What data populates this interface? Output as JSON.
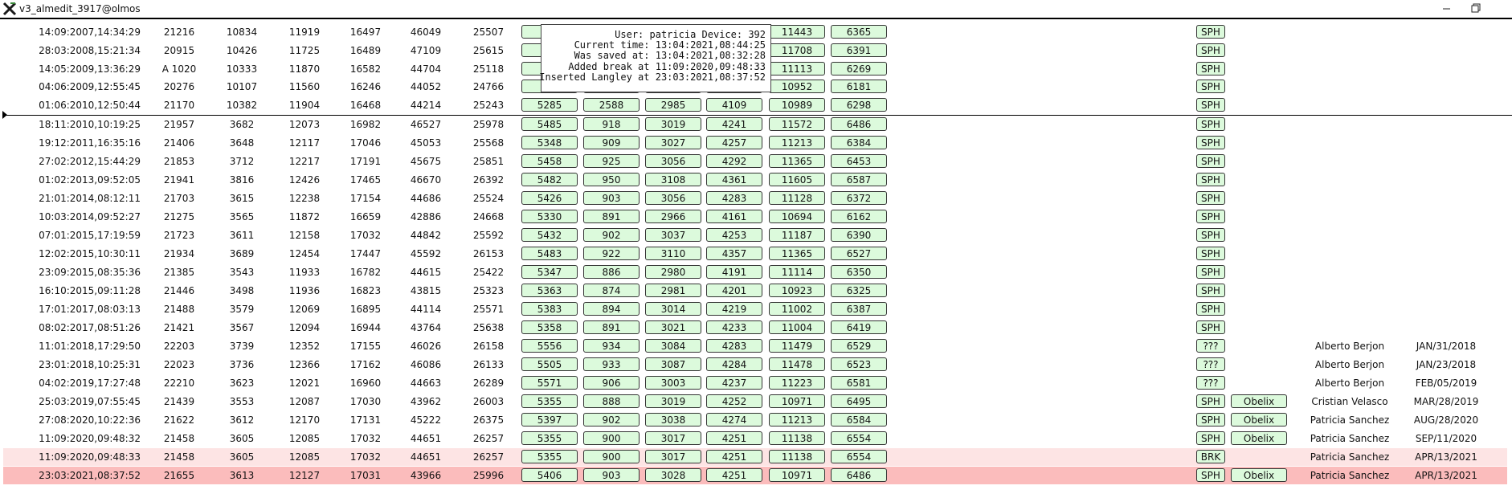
{
  "title": "v3_almedit_3917@olmos",
  "tooltip": [
    "User: patricia Device: 392",
    "Current time: 13:04:2021,08:44:25",
    "Was saved at: 13:04:2021,08:32:28",
    "Added break at 11:09:2020,09:48:33",
    "Inserted Langley at 23:03:2021,08:37:52"
  ],
  "rows": [
    {
      "date": "14:09:2007,14:34:29",
      "values": [
        21216,
        10834,
        11919,
        16497,
        46049,
        25507
      ],
      "boxes": [
        null,
        null,
        null,
        null,
        11443,
        6365
      ],
      "tags": [
        "SPH"
      ]
    },
    {
      "date": "28:03:2008,15:21:34",
      "values": [
        20915,
        10426,
        11725,
        16489,
        47109,
        25615
      ],
      "boxes": [
        null,
        null,
        null,
        null,
        11708,
        6391
      ],
      "tags": [
        "SPH"
      ]
    },
    {
      "date": "14:05:2009,13:36:29",
      "values": [
        "A 1020",
        10333,
        11870,
        16582,
        44704,
        25118
      ],
      "boxes": [
        null,
        null,
        null,
        null,
        11113,
        6269
      ],
      "tags": [
        "SPH"
      ]
    },
    {
      "date": "04:06:2009,12:55:45",
      "values": [
        20276,
        10107,
        11560,
        16246,
        44052,
        24766
      ],
      "boxes": [
        null,
        null,
        null,
        null,
        10952,
        6181
      ],
      "tags": [
        "SPH"
      ]
    },
    {
      "date": "01:06:2010,12:50:44",
      "values": [
        21170,
        10382,
        11904,
        16468,
        44214,
        25243
      ],
      "boxes": [
        5285,
        2588,
        2985,
        4109,
        10989,
        6298
      ],
      "tags": [
        "SPH"
      ]
    },
    {
      "date": "18:11:2010,10:19:25",
      "values": [
        21957,
        3682,
        12073,
        16982,
        46527,
        25978
      ],
      "boxes": [
        5485,
        918,
        3019,
        4241,
        11572,
        6486
      ],
      "tags": [
        "SPH"
      ]
    },
    {
      "date": "19:12:2011,16:35:16",
      "values": [
        21406,
        3648,
        12117,
        17046,
        45053,
        25568
      ],
      "boxes": [
        5348,
        909,
        3027,
        4257,
        11213,
        6384
      ],
      "tags": [
        "SPH"
      ]
    },
    {
      "date": "27:02:2012,15:44:29",
      "values": [
        21853,
        3712,
        12217,
        17191,
        45675,
        25851
      ],
      "boxes": [
        5458,
        925,
        3056,
        4292,
        11365,
        6453
      ],
      "tags": [
        "SPH"
      ]
    },
    {
      "date": "01:02:2013,09:52:05",
      "values": [
        21941,
        3816,
        12426,
        17465,
        46670,
        26392
      ],
      "boxes": [
        5482,
        950,
        3108,
        4361,
        11605,
        6587
      ],
      "tags": [
        "SPH"
      ]
    },
    {
      "date": "21:01:2014,08:12:11",
      "values": [
        21703,
        3615,
        12238,
        17154,
        44686,
        25524
      ],
      "boxes": [
        5426,
        903,
        3056,
        4283,
        11128,
        6372
      ],
      "tags": [
        "SPH"
      ]
    },
    {
      "date": "10:03:2014,09:52:27",
      "values": [
        21275,
        3565,
        11872,
        16659,
        42886,
        24668
      ],
      "boxes": [
        5330,
        891,
        2966,
        4161,
        10694,
        6162
      ],
      "tags": [
        "SPH"
      ]
    },
    {
      "date": "07:01:2015,17:19:59",
      "values": [
        21723,
        3611,
        12158,
        17032,
        44842,
        25592
      ],
      "boxes": [
        5432,
        902,
        3037,
        4253,
        11187,
        6390
      ],
      "tags": [
        "SPH"
      ]
    },
    {
      "date": "12:02:2015,10:30:11",
      "values": [
        21934,
        3689,
        12454,
        17447,
        45592,
        26153
      ],
      "boxes": [
        5483,
        922,
        3110,
        4357,
        11365,
        6527
      ],
      "tags": [
        "SPH"
      ]
    },
    {
      "date": "23:09:2015,08:35:36",
      "values": [
        21385,
        3543,
        11933,
        16782,
        44615,
        25422
      ],
      "boxes": [
        5347,
        886,
        2980,
        4191,
        11114,
        6350
      ],
      "tags": [
        "SPH"
      ]
    },
    {
      "date": "16:10:2015,09:11:28",
      "values": [
        21446,
        3498,
        11936,
        16823,
        43815,
        25323
      ],
      "boxes": [
        5363,
        874,
        2981,
        4201,
        10923,
        6325
      ],
      "tags": [
        "SPH"
      ]
    },
    {
      "date": "17:01:2017,08:03:13",
      "values": [
        21488,
        3579,
        12069,
        16895,
        44114,
        25571
      ],
      "boxes": [
        5383,
        894,
        3014,
        4219,
        11002,
        6387
      ],
      "tags": [
        "SPH"
      ]
    },
    {
      "date": "08:02:2017,08:51:26",
      "values": [
        21421,
        3567,
        12094,
        16944,
        43764,
        25638
      ],
      "boxes": [
        5358,
        891,
        3021,
        4233,
        11004,
        6419
      ],
      "tags": [
        "SPH"
      ]
    },
    {
      "date": "11:01:2018,17:29:50",
      "values": [
        22203,
        3739,
        12352,
        17155,
        46026,
        26158
      ],
      "boxes": [
        5556,
        934,
        3084,
        4283,
        11479,
        6529
      ],
      "tags": [
        "???"
      ],
      "name": "Alberto Berjon",
      "date2": "JAN/31/2018"
    },
    {
      "date": "23:01:2018,10:25:31",
      "values": [
        22023,
        3736,
        12366,
        17162,
        46086,
        26133
      ],
      "boxes": [
        5505,
        933,
        3087,
        4284,
        11478,
        6523
      ],
      "tags": [
        "???"
      ],
      "name": "Alberto Berjon",
      "date2": "JAN/23/2018"
    },
    {
      "date": "04:02:2019,17:27:48",
      "values": [
        22210,
        3623,
        12021,
        16960,
        44663,
        26289
      ],
      "boxes": [
        5571,
        906,
        3003,
        4237,
        11223,
        6581
      ],
      "tags": [
        "???"
      ],
      "name": "Alberto Berjon",
      "date2": "FEB/05/2019"
    },
    {
      "date": "25:03:2019,07:55:45",
      "values": [
        21439,
        3553,
        12087,
        17030,
        43962,
        26003
      ],
      "boxes": [
        5355,
        888,
        3019,
        4252,
        10971,
        6495
      ],
      "tags": [
        "SPH",
        "Obelix"
      ],
      "name": "Cristian Velasco",
      "date2": "MAR/28/2019"
    },
    {
      "date": "27:08:2020,10:22:36",
      "values": [
        21622,
        3612,
        12170,
        17131,
        45222,
        26375
      ],
      "boxes": [
        5397,
        902,
        3038,
        4274,
        11213,
        6584
      ],
      "tags": [
        "SPH",
        "Obelix"
      ],
      "name": "Patricia Sanchez",
      "date2": "AUG/28/2020"
    },
    {
      "date": "11:09:2020,09:48:32",
      "values": [
        21458,
        3605,
        12085,
        17032,
        44651,
        26257
      ],
      "boxes": [
        5355,
        900,
        3017,
        4251,
        11138,
        6554
      ],
      "tags": [
        "SPH",
        "Obelix"
      ],
      "name": "Patricia Sanchez",
      "date2": "SEP/11/2020"
    },
    {
      "date": "11:09:2020,09:48:33",
      "values": [
        21458,
        3605,
        12085,
        17032,
        44651,
        26257
      ],
      "boxes": [
        5355,
        900,
        3017,
        4251,
        11138,
        6554
      ],
      "tags": [
        "BRK"
      ],
      "name": "Patricia Sanchez",
      "date2": "APR/13/2021"
    },
    {
      "date": "23:03:2021,08:37:52",
      "values": [
        21655,
        3613,
        12127,
        17031,
        43966,
        25996
      ],
      "boxes": [
        5406,
        903,
        3028,
        4251,
        10971,
        6486
      ],
      "tags": [
        "SPH",
        "Obelix"
      ],
      "name": "Patricia Sanchez",
      "date2": "APR/13/2021"
    }
  ]
}
